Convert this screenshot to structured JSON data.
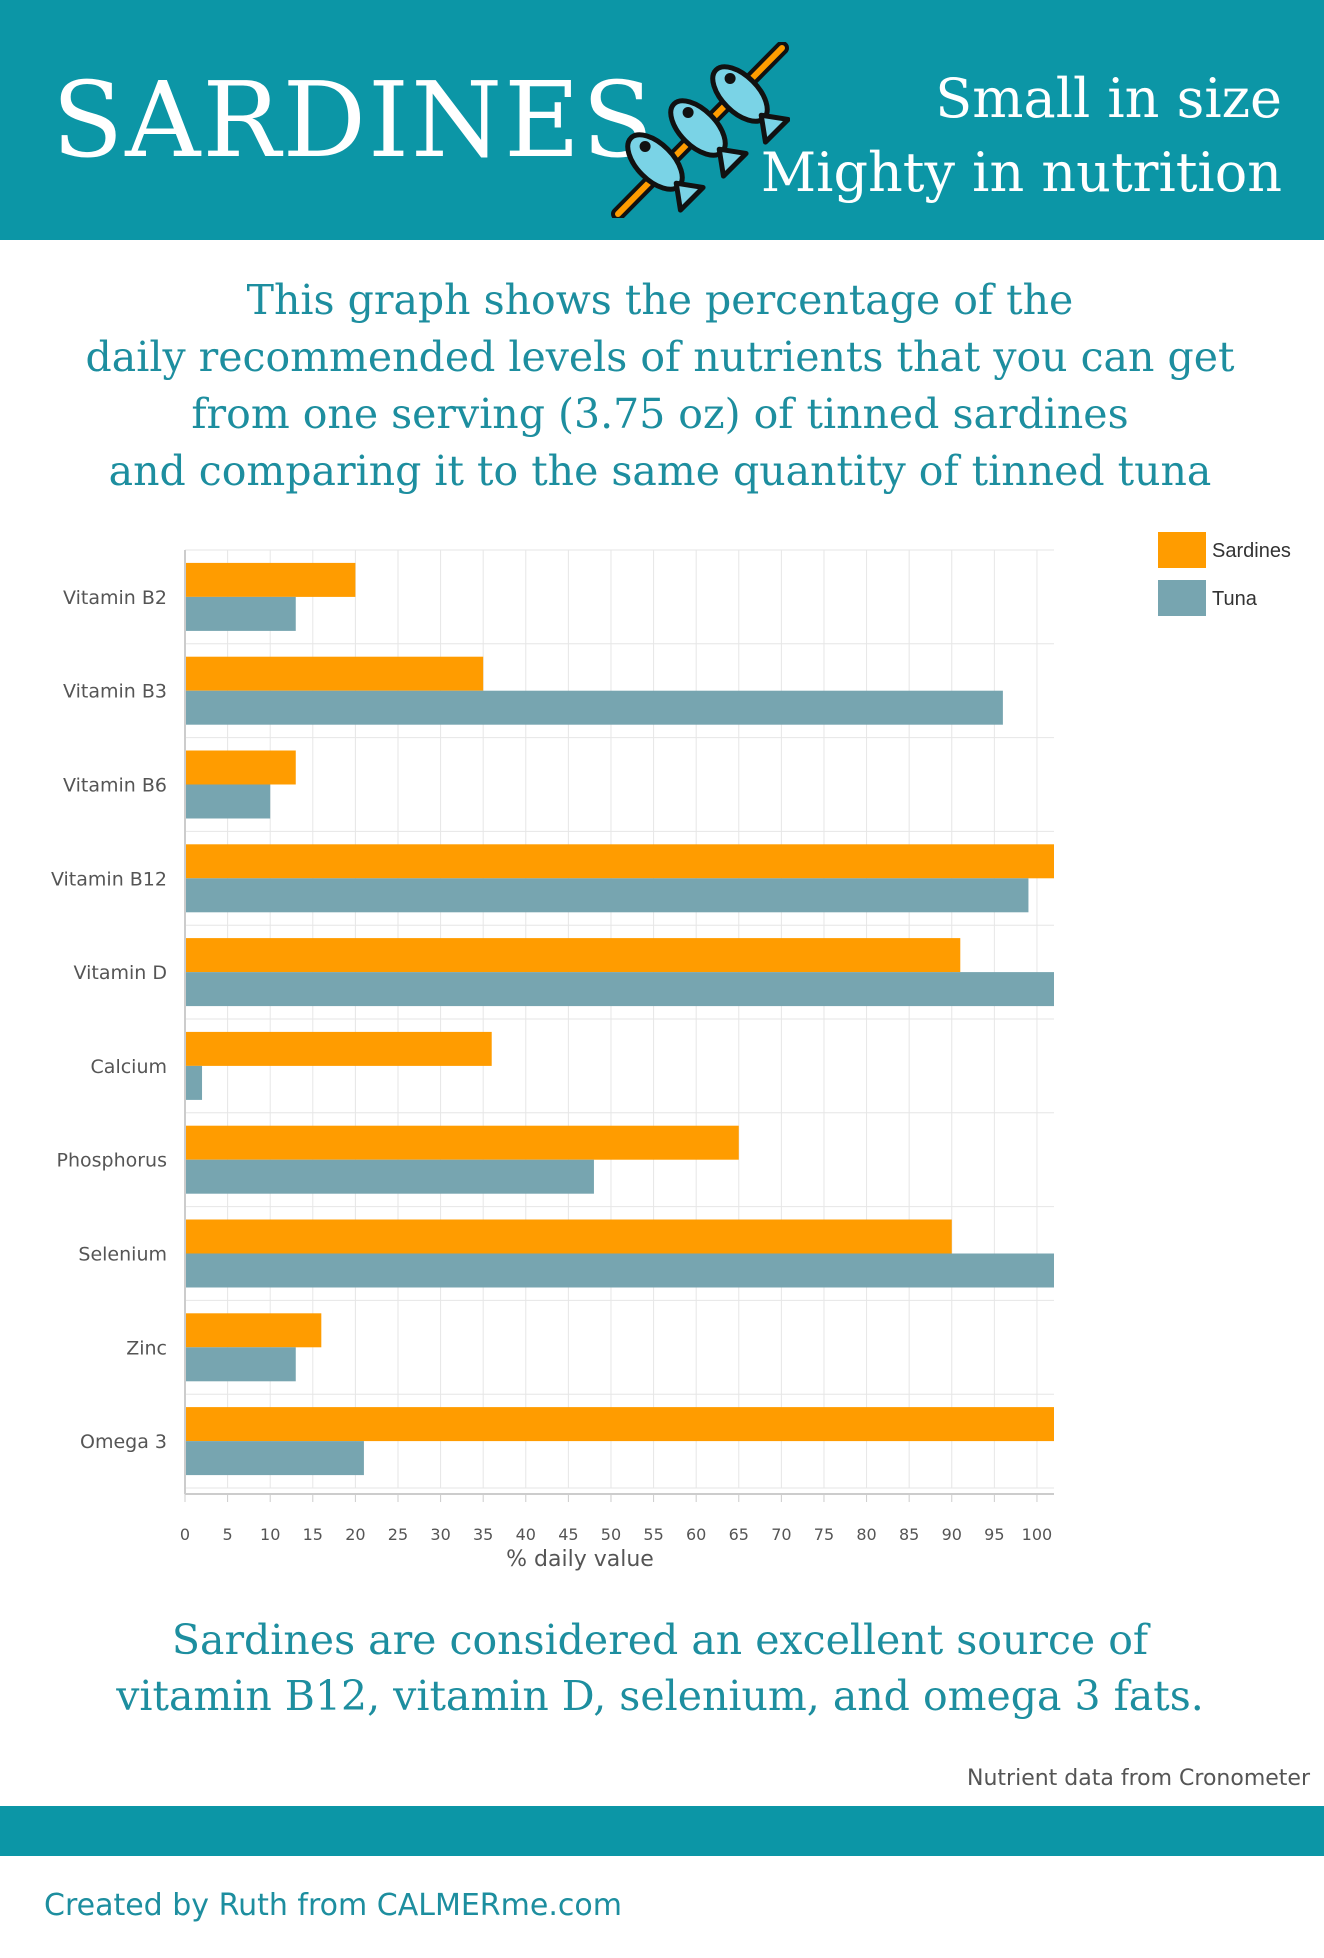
{
  "header": {
    "title": "SARDINES",
    "tagline_line1": "Small in size",
    "tagline_line2": "Mighty in nutrition"
  },
  "intro": {
    "line1": "This graph shows the percentage of the",
    "line2": "daily recommended levels of nutrients that you can get",
    "line3": "from one serving (3.75 oz) of tinned sardines",
    "line4": "and comparing it to the same quantity of tinned tuna"
  },
  "chart_data": {
    "type": "bar",
    "orientation": "horizontal",
    "categories": [
      "Vitamin B2",
      "Vitamin B3",
      "Vitamin B6",
      "Vitamin B12",
      "Vitamin D",
      "Calcium",
      "Phosphorus",
      "Selenium",
      "Zinc",
      "Omega 3"
    ],
    "series": [
      {
        "name": "Sardines",
        "color": "#ff9c00",
        "values": [
          20,
          35,
          13,
          102,
          91,
          36,
          65,
          90,
          16,
          102
        ]
      },
      {
        "name": "Tuna",
        "color": "#77a5b0",
        "values": [
          13,
          96,
          10,
          99,
          102,
          2,
          48,
          102,
          13,
          21
        ]
      }
    ],
    "xticks": [
      "0",
      "5",
      "10",
      "15",
      "20",
      "25",
      "30",
      "35",
      "40",
      "45",
      "50",
      "55",
      "60",
      "65",
      "70",
      "75",
      "80",
      "85",
      "90",
      "95",
      "100"
    ],
    "xlabel": "% daily value",
    "xlim": [
      0,
      102
    ],
    "grid": true,
    "legend_position": "top-right"
  },
  "conclusion": {
    "line1": "Sardines are considered an excellent source of",
    "line2": "vitamin B12, vitamin D, selenium, and omega 3 fats."
  },
  "footer": {
    "source_note": "Nutrient data from Cronometer",
    "credit": "Created by Ruth from CALMERme.com"
  },
  "icons": {
    "fish_skewer": "fish-skewer-icon"
  },
  "colors": {
    "teal_band": "#0c96a6",
    "teal_text": "#1d8e9f",
    "fish_blue": "#7ad3e6",
    "skewer_orange": "#ff9c00"
  }
}
